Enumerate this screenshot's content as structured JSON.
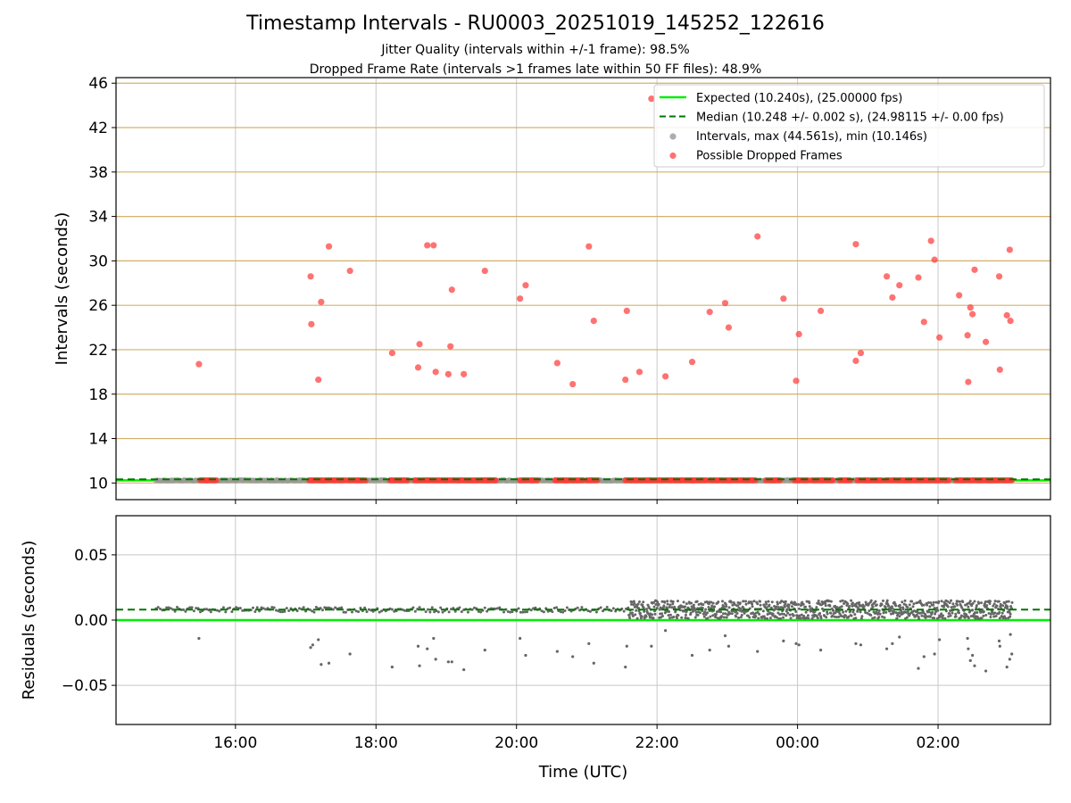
{
  "title": "Timestamp Intervals - RU0003_20251019_145252_122616",
  "subtitle_jitter": "Jitter Quality (intervals within +/-1 frame): 98.5%",
  "subtitle_dropped": "Dropped Frame Rate (intervals >1 frames late within 50 FF files): 48.9%",
  "chart_data": [
    {
      "type": "scatter",
      "title": "Timestamp Intervals - RU0003_20251019_145252_122616",
      "xlabel": "",
      "ylabel": "Intervals (seconds)",
      "x_unit": "hours since 00:00 UTC on first day",
      "xlim": [
        14.3,
        27.6
      ],
      "ylim": [
        8.5,
        46.5
      ],
      "yticks": [
        10,
        14,
        18,
        22,
        26,
        30,
        34,
        38,
        42,
        46
      ],
      "ytick_labels": [
        "10",
        "14",
        "18",
        "22",
        "26",
        "30",
        "34",
        "38",
        "42",
        "46"
      ],
      "hlines": {
        "expected": 10.24,
        "median": 10.248
      },
      "legend": {
        "position": "upper-right",
        "entries": [
          {
            "label": "Expected (10.240s), (25.00000 fps)",
            "style": "solid-line",
            "color": "#00ee00"
          },
          {
            "label": "Median (10.248 +/- 0.002 s), (24.98115 +/- 0.00 fps)",
            "style": "dashed-line",
            "color": "#007700"
          },
          {
            "label": "Intervals, max (44.561s), min (10.146s)",
            "style": "dot",
            "color": "#999999"
          },
          {
            "label": "Possible Dropped Frames",
            "style": "dot",
            "color": "#ff4d4d"
          }
        ]
      },
      "intervals_range": [
        14.87,
        27.06
      ],
      "baseline_dropped_segments": [
        [
          15.5,
          15.75
        ],
        [
          17.05,
          17.55
        ],
        [
          17.6,
          17.85
        ],
        [
          18.2,
          18.45
        ],
        [
          18.55,
          19.7
        ],
        [
          19.5,
          19.7
        ],
        [
          20.05,
          20.3
        ],
        [
          20.55,
          20.95
        ],
        [
          21.0,
          21.15
        ],
        [
          21.55,
          22.5
        ],
        [
          22.5,
          22.7
        ],
        [
          22.75,
          23.4
        ],
        [
          23.55,
          23.75
        ],
        [
          23.95,
          24.15
        ],
        [
          24.2,
          24.5
        ],
        [
          24.6,
          24.75
        ],
        [
          24.85,
          25.2
        ],
        [
          25.25,
          26.15
        ],
        [
          26.25,
          27.05
        ]
      ],
      "dropped_frames": [
        {
          "x": 15.48,
          "y": 20.7
        },
        {
          "x": 17.07,
          "y": 28.6
        },
        {
          "x": 17.08,
          "y": 24.3
        },
        {
          "x": 17.18,
          "y": 19.3
        },
        {
          "x": 17.22,
          "y": 26.3
        },
        {
          "x": 17.33,
          "y": 31.3
        },
        {
          "x": 17.63,
          "y": 29.1
        },
        {
          "x": 18.23,
          "y": 21.7
        },
        {
          "x": 18.6,
          "y": 20.4
        },
        {
          "x": 18.62,
          "y": 22.5
        },
        {
          "x": 18.73,
          "y": 31.4
        },
        {
          "x": 18.82,
          "y": 31.4
        },
        {
          "x": 18.85,
          "y": 20.0
        },
        {
          "x": 19.03,
          "y": 19.8
        },
        {
          "x": 19.08,
          "y": 27.4
        },
        {
          "x": 19.06,
          "y": 22.3
        },
        {
          "x": 19.25,
          "y": 19.8
        },
        {
          "x": 19.55,
          "y": 29.1
        },
        {
          "x": 20.05,
          "y": 26.6
        },
        {
          "x": 20.13,
          "y": 27.8
        },
        {
          "x": 20.58,
          "y": 20.8
        },
        {
          "x": 20.8,
          "y": 18.9
        },
        {
          "x": 21.03,
          "y": 31.3
        },
        {
          "x": 21.1,
          "y": 24.6
        },
        {
          "x": 21.55,
          "y": 19.3
        },
        {
          "x": 21.57,
          "y": 25.5
        },
        {
          "x": 21.75,
          "y": 20.0
        },
        {
          "x": 21.92,
          "y": 44.6
        },
        {
          "x": 22.12,
          "y": 19.6
        },
        {
          "x": 22.5,
          "y": 20.9
        },
        {
          "x": 22.75,
          "y": 25.4
        },
        {
          "x": 22.97,
          "y": 26.2
        },
        {
          "x": 23.02,
          "y": 24.0
        },
        {
          "x": 23.43,
          "y": 32.2
        },
        {
          "x": 23.8,
          "y": 26.6
        },
        {
          "x": 23.98,
          "y": 19.2
        },
        {
          "x": 24.02,
          "y": 23.4
        },
        {
          "x": 24.33,
          "y": 25.5
        },
        {
          "x": 24.83,
          "y": 31.5
        },
        {
          "x": 24.83,
          "y": 21.0
        },
        {
          "x": 24.9,
          "y": 21.7
        },
        {
          "x": 25.27,
          "y": 28.6
        },
        {
          "x": 25.35,
          "y": 26.7
        },
        {
          "x": 25.45,
          "y": 27.8
        },
        {
          "x": 25.72,
          "y": 28.5
        },
        {
          "x": 25.8,
          "y": 24.5
        },
        {
          "x": 25.9,
          "y": 31.8
        },
        {
          "x": 25.95,
          "y": 30.1
        },
        {
          "x": 26.02,
          "y": 23.1
        },
        {
          "x": 26.3,
          "y": 26.9
        },
        {
          "x": 26.42,
          "y": 23.3
        },
        {
          "x": 26.43,
          "y": 19.1
        },
        {
          "x": 26.46,
          "y": 25.8
        },
        {
          "x": 26.49,
          "y": 25.2
        },
        {
          "x": 26.52,
          "y": 29.2
        },
        {
          "x": 26.68,
          "y": 22.7
        },
        {
          "x": 26.87,
          "y": 28.6
        },
        {
          "x": 26.88,
          "y": 20.2
        },
        {
          "x": 26.98,
          "y": 25.1
        },
        {
          "x": 27.02,
          "y": 31.0
        },
        {
          "x": 27.03,
          "y": 24.6
        }
      ]
    },
    {
      "type": "scatter",
      "title": "",
      "xlabel": "Time (UTC)",
      "ylabel": "Residuals (seconds)",
      "x_unit": "hours since 00:00 UTC on first day",
      "xlim": [
        14.3,
        27.6
      ],
      "ylim": [
        -0.08,
        0.08
      ],
      "yticks": [
        0.05,
        0.0,
        -0.05
      ],
      "ytick_labels": [
        "0.05",
        "0.00",
        "−0.05"
      ],
      "xticks": [
        16,
        18,
        20,
        22,
        24,
        26
      ],
      "xtick_labels": [
        "16:00",
        "18:00",
        "20:00",
        "22:00",
        "00:00",
        "02:00"
      ],
      "hlines": {
        "expected_residual": 0.0,
        "median_residual": 0.008
      },
      "residual_bands": [
        {
          "x_range": [
            14.87,
            21.6
          ],
          "center": 0.008,
          "spread": 0.002,
          "style": "sparse"
        },
        {
          "x_range": [
            21.6,
            27.06
          ],
          "center": 0.008,
          "spread": 0.007,
          "style": "dense"
        }
      ],
      "residual_outliers": [
        {
          "x": 15.48,
          "y": -0.014
        },
        {
          "x": 17.07,
          "y": -0.021
        },
        {
          "x": 17.1,
          "y": -0.019
        },
        {
          "x": 17.18,
          "y": -0.015
        },
        {
          "x": 17.22,
          "y": -0.034
        },
        {
          "x": 17.33,
          "y": -0.033
        },
        {
          "x": 17.63,
          "y": -0.026
        },
        {
          "x": 18.23,
          "y": -0.036
        },
        {
          "x": 18.6,
          "y": -0.02
        },
        {
          "x": 18.62,
          "y": -0.035
        },
        {
          "x": 18.73,
          "y": -0.022
        },
        {
          "x": 18.82,
          "y": -0.014
        },
        {
          "x": 18.85,
          "y": -0.03
        },
        {
          "x": 19.03,
          "y": -0.032
        },
        {
          "x": 19.08,
          "y": -0.032
        },
        {
          "x": 19.25,
          "y": -0.038
        },
        {
          "x": 19.55,
          "y": -0.023
        },
        {
          "x": 20.05,
          "y": -0.014
        },
        {
          "x": 20.13,
          "y": -0.027
        },
        {
          "x": 20.58,
          "y": -0.024
        },
        {
          "x": 20.8,
          "y": -0.028
        },
        {
          "x": 21.03,
          "y": -0.018
        },
        {
          "x": 21.1,
          "y": -0.033
        },
        {
          "x": 21.55,
          "y": -0.036
        },
        {
          "x": 21.57,
          "y": -0.02
        },
        {
          "x": 21.92,
          "y": -0.02
        },
        {
          "x": 22.12,
          "y": -0.008
        },
        {
          "x": 22.5,
          "y": -0.027
        },
        {
          "x": 22.75,
          "y": -0.023
        },
        {
          "x": 22.97,
          "y": -0.012
        },
        {
          "x": 23.02,
          "y": -0.02
        },
        {
          "x": 23.43,
          "y": -0.024
        },
        {
          "x": 23.8,
          "y": -0.016
        },
        {
          "x": 23.98,
          "y": -0.018
        },
        {
          "x": 24.02,
          "y": -0.019
        },
        {
          "x": 24.33,
          "y": -0.023
        },
        {
          "x": 24.83,
          "y": -0.018
        },
        {
          "x": 24.9,
          "y": -0.019
        },
        {
          "x": 25.27,
          "y": -0.022
        },
        {
          "x": 25.35,
          "y": -0.018
        },
        {
          "x": 25.45,
          "y": -0.013
        },
        {
          "x": 25.72,
          "y": -0.037
        },
        {
          "x": 25.8,
          "y": -0.028
        },
        {
          "x": 25.95,
          "y": -0.026
        },
        {
          "x": 26.02,
          "y": -0.015
        },
        {
          "x": 26.42,
          "y": -0.014
        },
        {
          "x": 26.43,
          "y": -0.022
        },
        {
          "x": 26.46,
          "y": -0.031
        },
        {
          "x": 26.49,
          "y": -0.027
        },
        {
          "x": 26.52,
          "y": -0.035
        },
        {
          "x": 26.68,
          "y": -0.039
        },
        {
          "x": 26.87,
          "y": -0.016
        },
        {
          "x": 26.88,
          "y": -0.02
        },
        {
          "x": 26.98,
          "y": -0.036
        },
        {
          "x": 27.02,
          "y": -0.03
        },
        {
          "x": 27.03,
          "y": -0.011
        },
        {
          "x": 27.05,
          "y": -0.026
        }
      ]
    }
  ],
  "colors": {
    "expected": "#00ee00",
    "median": "#007700",
    "intervals": "#999999",
    "dropped": "#ff3b3b",
    "residual_dots": "#666666",
    "hgrid_top": "#d4b06a",
    "grid": "#c8c8c8"
  }
}
